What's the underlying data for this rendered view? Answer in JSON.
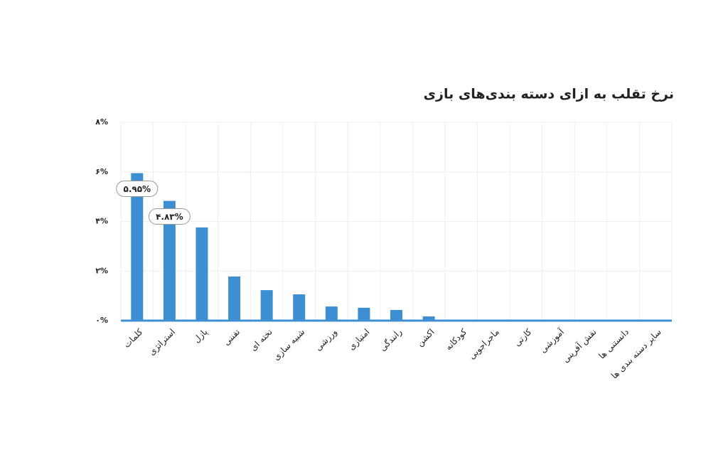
{
  "chart_data": {
    "type": "bar",
    "title": "نرخ تقلب به ازای دسته بندی‌های بازی",
    "categories": [
      "کلمات",
      "استراتژی",
      "پازل",
      "تفننی",
      "تخته ای",
      "شبیه سازی",
      "ورزشی",
      "امتیازی",
      "رانندگی",
      "اکشن",
      "کودکانه",
      "ماجراجویی",
      "کارتی",
      "آموزشی",
      "نقش آفرینی",
      "دانستنی ها",
      "سایر دسته بندی ها"
    ],
    "values": [
      5.95,
      4.83,
      3.76,
      1.78,
      1.23,
      1.06,
      0.57,
      0.52,
      0.43,
      0.17,
      0,
      0,
      0,
      0,
      0,
      0,
      0
    ],
    "value_labels": [
      "۵.۹۵%",
      "۴.۸۳%",
      null,
      null,
      null,
      null,
      null,
      null,
      null,
      null,
      null,
      null,
      null,
      null,
      null,
      null,
      null
    ],
    "color": "#3d8fd1",
    "ylim": [
      0,
      8
    ],
    "yticks": [
      {
        "value": 0,
        "label": "۰%"
      },
      {
        "value": 2,
        "label": "۲%"
      },
      {
        "value": 4,
        "label": "۴%"
      },
      {
        "value": 6,
        "label": "۶%"
      },
      {
        "value": 8,
        "label": "۸%"
      }
    ],
    "grid": true
  }
}
